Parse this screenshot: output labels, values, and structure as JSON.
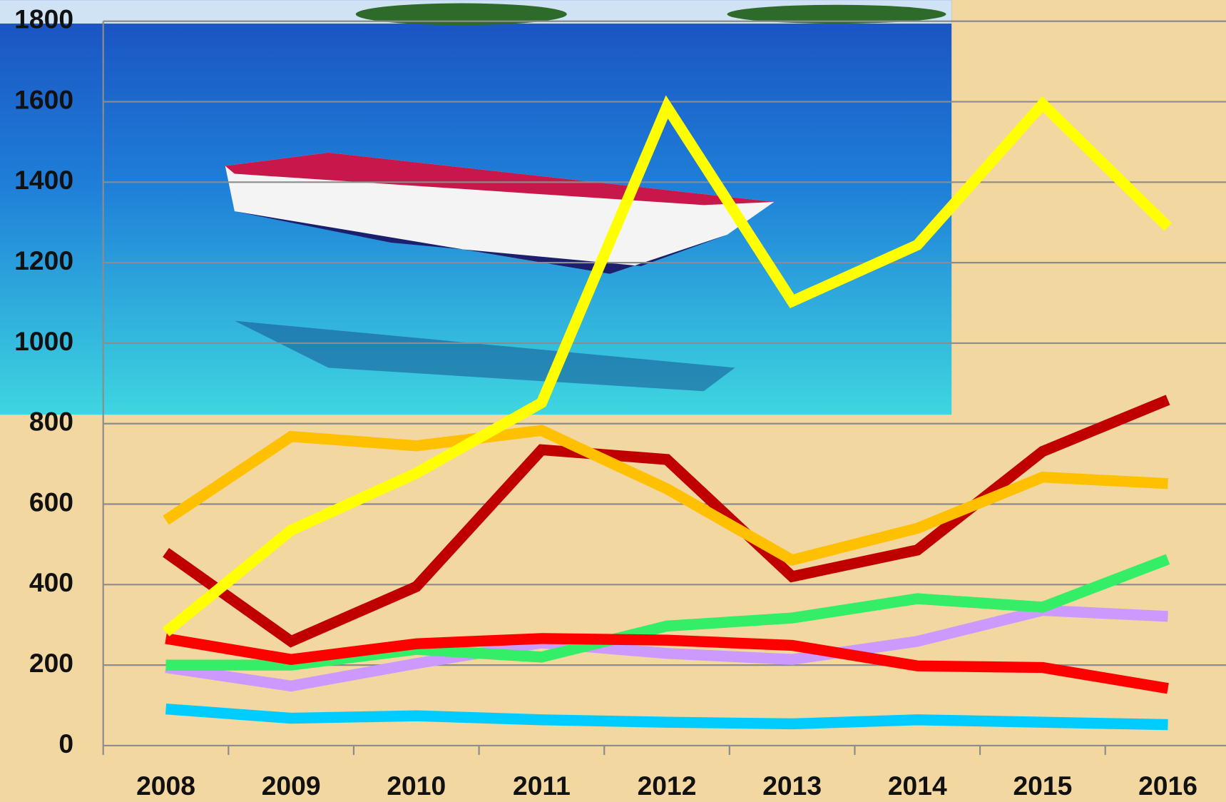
{
  "chart_data": {
    "type": "line",
    "categories": [
      "2008",
      "2009",
      "2010",
      "2011",
      "2012",
      "2013",
      "2014",
      "2015",
      "2016"
    ],
    "series": [
      {
        "color": "#00ccff",
        "values": [
          91,
          68,
          74,
          64,
          58,
          54,
          64,
          58,
          52
        ]
      },
      {
        "color": "#cc99ff",
        "values": [
          194,
          148,
          204,
          255,
          229,
          214,
          259,
          336,
          321
        ]
      },
      {
        "color": "#33ee66",
        "values": [
          200,
          200,
          239,
          220,
          297,
          317,
          365,
          344,
          463
        ]
      },
      {
        "color": "#ff0000",
        "values": [
          266,
          214,
          253,
          266,
          262,
          249,
          198,
          194,
          142
        ]
      },
      {
        "color": "#c00000",
        "values": [
          480,
          259,
          395,
          735,
          711,
          420,
          486,
          731,
          859
        ]
      },
      {
        "color": "#ffc000",
        "values": [
          560,
          768,
          745,
          783,
          638,
          461,
          540,
          667,
          651
        ]
      },
      {
        "color": "#ffff00",
        "values": [
          282,
          535,
          677,
          852,
          1587,
          1104,
          1244,
          1594,
          1289
        ]
      }
    ],
    "ylim": [
      0,
      1800
    ],
    "yticks": [
      0,
      200,
      400,
      600,
      800,
      1000,
      1200,
      1400,
      1600,
      1800
    ],
    "grid": true
  }
}
